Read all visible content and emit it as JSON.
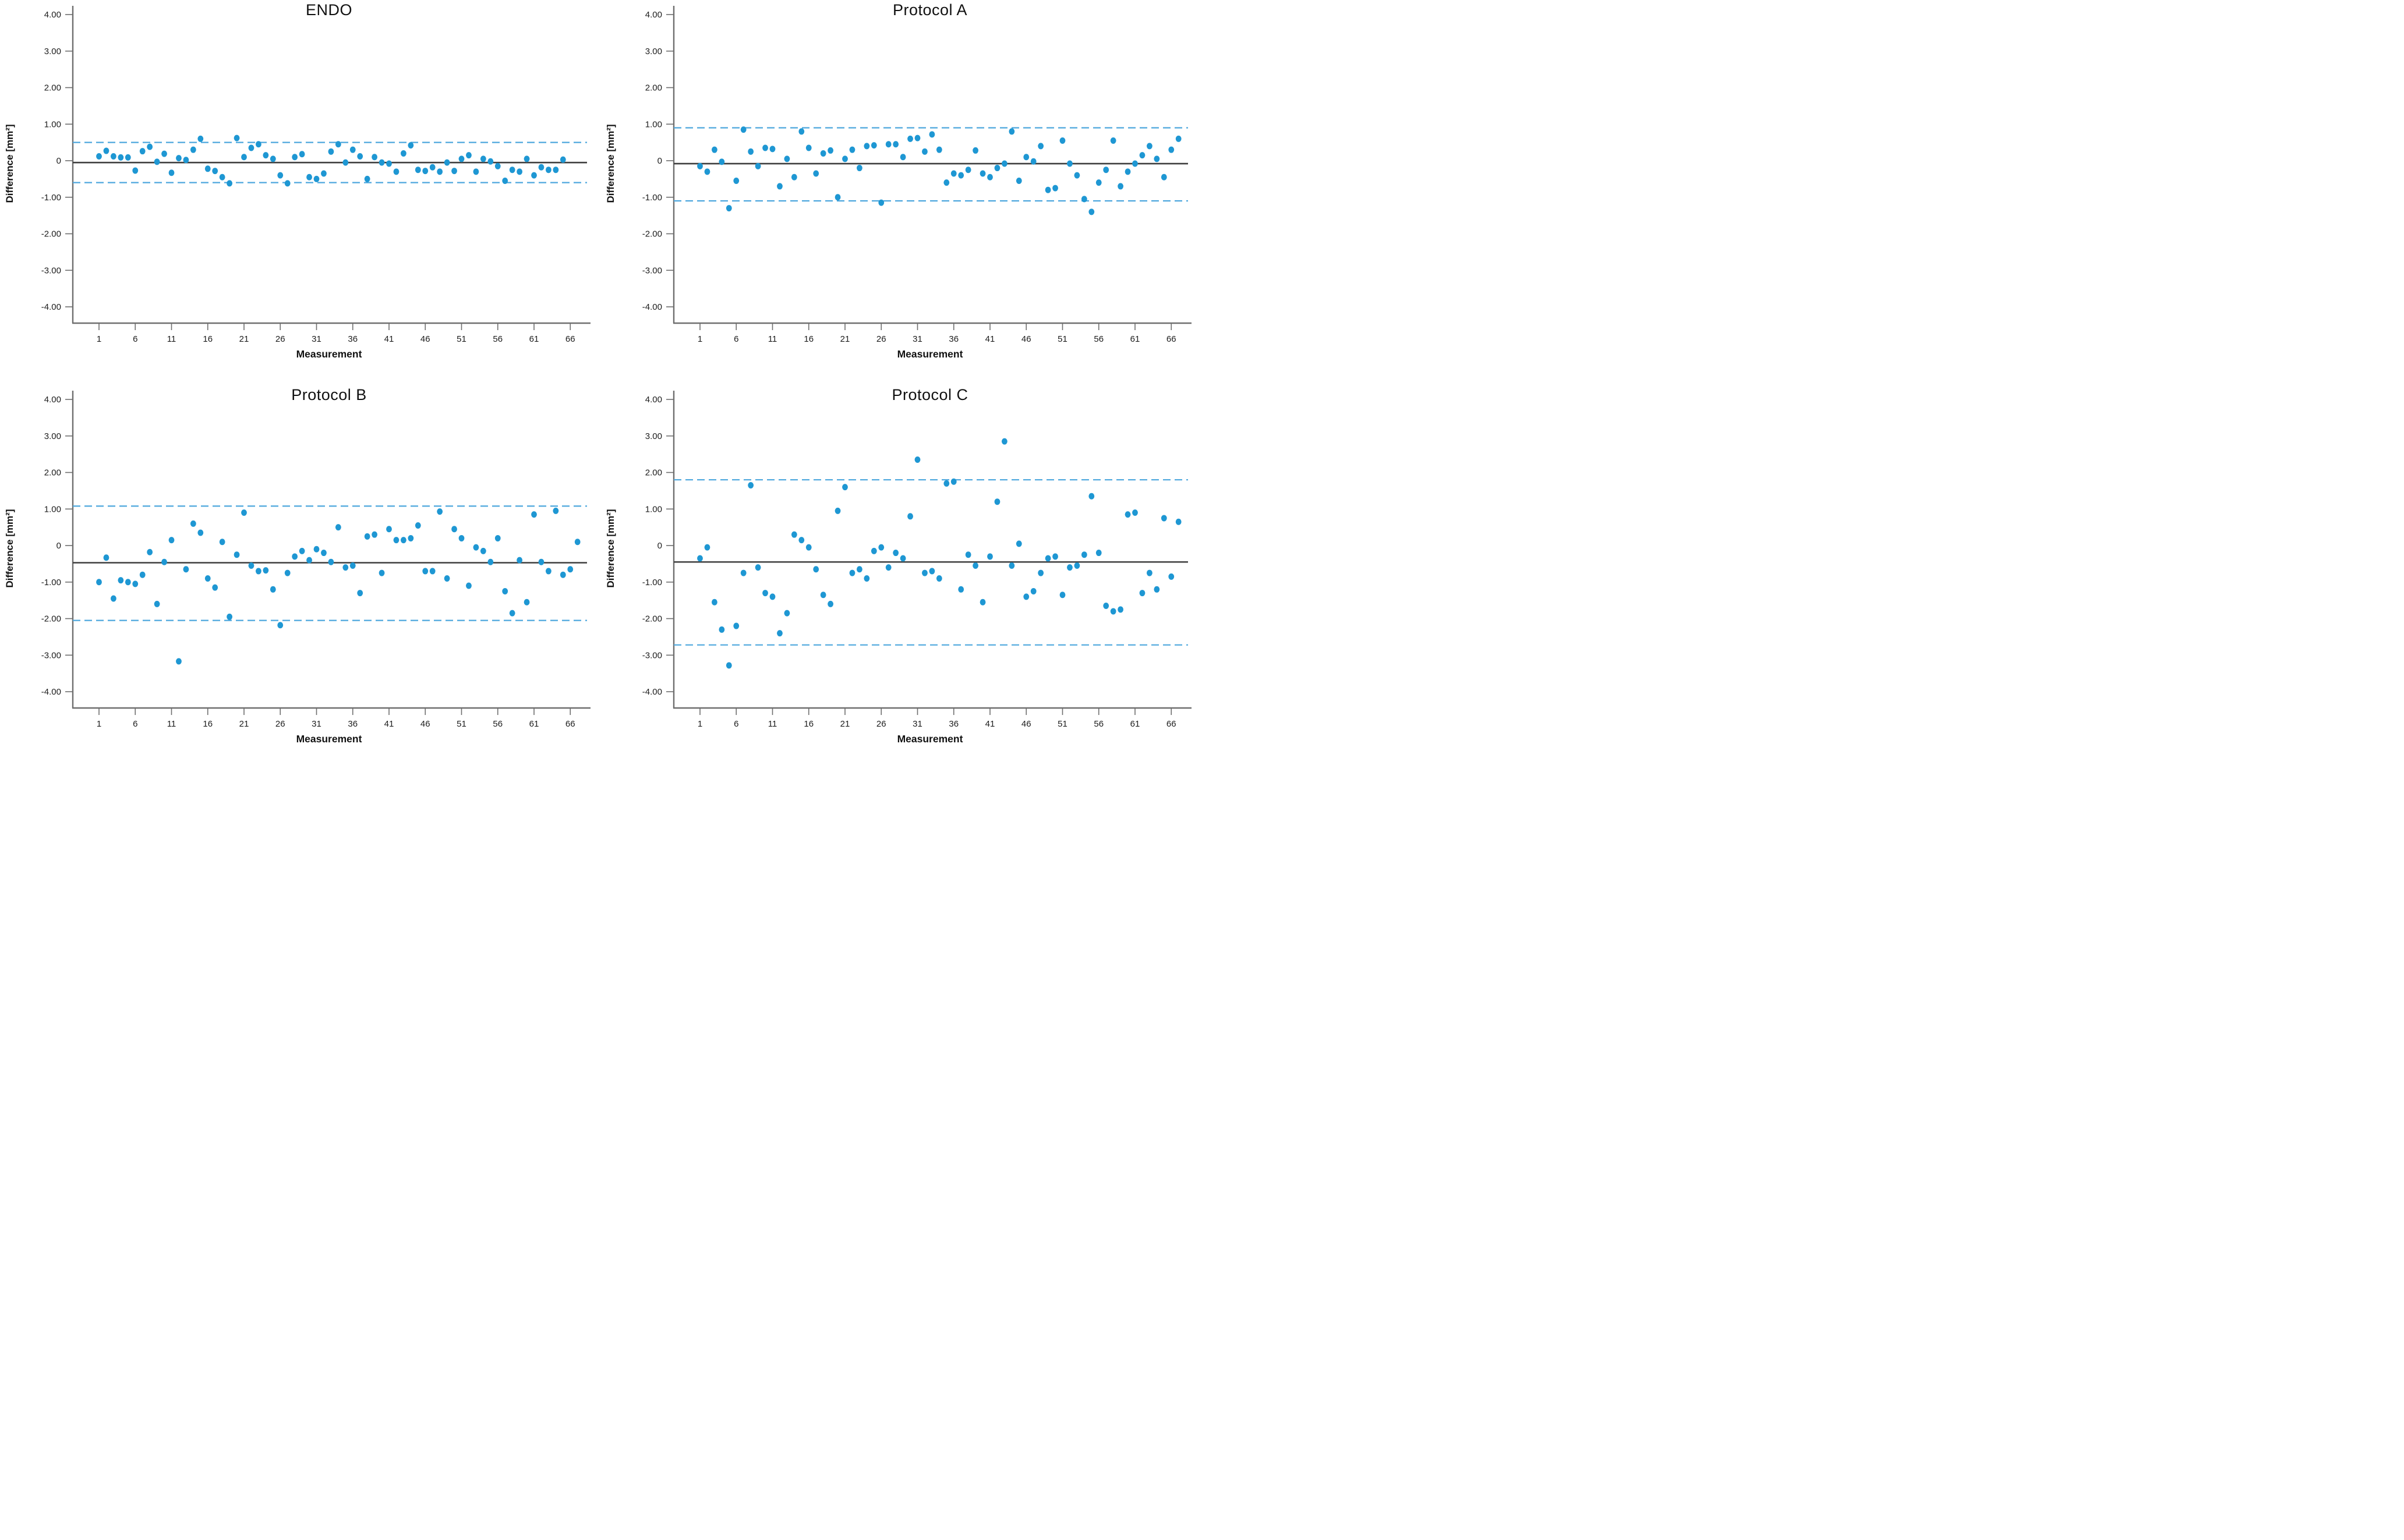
{
  "colors": {
    "dot_fill": "#1e97d3",
    "loa_dashed_line": "#4da7dd",
    "mean_line": "#3f3f3f",
    "axis_line": "#6e6e6e",
    "tick_text": "#1c1c1c"
  },
  "chart_data": [
    {
      "type": "scatter",
      "title": "ENDO",
      "xlabel": "Measurement",
      "ylabel": "Difference [mm²]",
      "x_ticks": [
        1,
        6,
        11,
        16,
        21,
        26,
        31,
        36,
        41,
        46,
        51,
        56,
        61,
        66
      ],
      "y_ticks": [
        "4.00",
        "3.00",
        "2.00",
        "1.00",
        "0",
        "-1.00",
        "-2.00",
        "-3.00",
        "-4.00"
      ],
      "y_tick_values": [
        4,
        3,
        2,
        1,
        0,
        -1,
        -2,
        -3,
        -4
      ],
      "ylim": [
        -4.5,
        4.5
      ],
      "mean": -0.05,
      "loa_upper": 0.5,
      "loa_lower": -0.6,
      "values": [
        0.12,
        0.27,
        0.12,
        0.09,
        0.09,
        -0.27,
        0.26,
        0.38,
        -0.03,
        0.19,
        -0.33,
        0.07,
        0.02,
        0.3,
        0.6,
        -0.22,
        -0.28,
        -0.45,
        -0.62,
        0.62,
        0.1,
        0.35,
        0.45,
        0.15,
        0.05,
        -0.4,
        -0.62,
        0.1,
        0.18,
        -0.45,
        -0.5,
        -0.35,
        0.25,
        0.45,
        -0.05,
        0.3,
        0.12,
        -0.5,
        0.1,
        -0.05,
        -0.08,
        -0.3,
        0.2,
        0.42,
        -0.25,
        -0.28,
        -0.18,
        -0.3,
        -0.05,
        -0.28,
        0.05,
        0.15,
        -0.3,
        0.05,
        -0.02,
        -0.15,
        -0.55,
        -0.25,
        -0.3,
        0.05,
        -0.4,
        -0.18,
        -0.25,
        -0.25,
        0.03
      ]
    },
    {
      "type": "scatter",
      "title": "Protocol A",
      "xlabel": "Measurement",
      "ylabel": "Difference [mm²]",
      "x_ticks": [
        1,
        6,
        11,
        16,
        21,
        26,
        31,
        36,
        41,
        46,
        51,
        56,
        61,
        66
      ],
      "y_ticks": [
        "4.00",
        "3.00",
        "2.00",
        "1.00",
        "0",
        "-1.00",
        "-2.00",
        "-3.00",
        "-4.00"
      ],
      "y_tick_values": [
        4,
        3,
        2,
        1,
        0,
        -1,
        -2,
        -3,
        -4
      ],
      "ylim": [
        -4.5,
        4.5
      ],
      "mean": -0.08,
      "loa_upper": 0.9,
      "loa_lower": -1.1,
      "values": [
        -0.15,
        -0.3,
        0.3,
        -0.03,
        -1.3,
        -0.55,
        0.85,
        0.25,
        -0.15,
        0.35,
        0.32,
        -0.7,
        0.05,
        -0.45,
        0.8,
        0.35,
        -0.35,
        0.2,
        0.28,
        -1.0,
        0.05,
        0.3,
        -0.2,
        0.4,
        0.42,
        -1.15,
        0.45,
        0.45,
        0.1,
        0.6,
        0.62,
        0.25,
        0.72,
        0.3,
        -0.6,
        -0.35,
        -0.4,
        -0.25,
        0.28,
        -0.35,
        -0.45,
        -0.2,
        -0.08,
        0.8,
        -0.55,
        0.1,
        -0.02,
        0.4,
        -0.8,
        -0.75,
        0.55,
        -0.08,
        -0.4,
        -1.05,
        -1.4,
        -0.6,
        -0.25,
        0.55,
        -0.7,
        -0.3,
        -0.08,
        0.15,
        0.4,
        0.05,
        -0.45,
        0.3,
        0.6
      ]
    },
    {
      "type": "scatter",
      "title": "Protocol B",
      "xlabel": "Measurement",
      "ylabel": "Difference [mm²]",
      "x_ticks": [
        1,
        6,
        11,
        16,
        21,
        26,
        31,
        36,
        41,
        46,
        51,
        56,
        61,
        66
      ],
      "y_ticks": [
        "4.00",
        "3.00",
        "2.00",
        "1.00",
        "0",
        "-1.00",
        "-2.00",
        "-3.00",
        "-4.00"
      ],
      "y_tick_values": [
        4,
        3,
        2,
        1,
        0,
        -1,
        -2,
        -3,
        -4
      ],
      "ylim": [
        -4.5,
        4.5
      ],
      "mean": -0.47,
      "loa_upper": 1.08,
      "loa_lower": -2.05,
      "values": [
        -1.0,
        -0.33,
        -1.45,
        -0.95,
        -1.0,
        -1.05,
        -0.8,
        -0.18,
        -1.6,
        -0.45,
        0.15,
        -3.17,
        -0.65,
        0.6,
        0.35,
        -0.9,
        -1.15,
        0.1,
        -1.95,
        -0.25,
        0.9,
        -0.55,
        -0.7,
        -0.68,
        -1.2,
        -2.18,
        -0.75,
        -0.3,
        -0.15,
        -0.4,
        -0.1,
        -0.2,
        -0.45,
        0.5,
        -0.6,
        -0.55,
        -1.3,
        0.25,
        0.3,
        -0.75,
        0.45,
        0.15,
        0.15,
        0.2,
        0.55,
        -0.7,
        -0.7,
        0.93,
        -0.9,
        0.45,
        0.2,
        -1.1,
        -0.05,
        -0.15,
        -0.45,
        0.2,
        -1.25,
        -1.85,
        -0.4,
        -1.55,
        0.85,
        -0.45,
        -0.7,
        0.95,
        -0.8,
        -0.65,
        0.1
      ]
    },
    {
      "type": "scatter",
      "title": "Protocol C",
      "xlabel": "Measurement",
      "ylabel": "Difference [mm²]",
      "x_ticks": [
        1,
        6,
        11,
        16,
        21,
        26,
        31,
        36,
        41,
        46,
        51,
        56,
        61,
        66
      ],
      "y_ticks": [
        "4.00",
        "3.00",
        "2.00",
        "1.00",
        "0",
        "-1.00",
        "-2.00",
        "-3.00",
        "-4.00"
      ],
      "y_tick_values": [
        4,
        3,
        2,
        1,
        0,
        -1,
        -2,
        -3,
        -4
      ],
      "ylim": [
        -4.5,
        4.5
      ],
      "mean": -0.45,
      "loa_upper": 1.8,
      "loa_lower": -2.72,
      "values": [
        -0.35,
        -0.05,
        -1.55,
        -2.3,
        -3.28,
        -2.2,
        -0.75,
        1.65,
        -0.6,
        -1.3,
        -1.4,
        -2.4,
        -1.85,
        0.3,
        0.15,
        -0.05,
        -0.65,
        -1.35,
        -1.6,
        0.95,
        1.6,
        -0.75,
        -0.65,
        -0.9,
        -0.15,
        -0.05,
        -0.6,
        -0.2,
        -0.35,
        0.8,
        2.35,
        -0.75,
        -0.7,
        -0.9,
        1.7,
        1.75,
        -1.2,
        -0.25,
        -0.55,
        -1.55,
        -0.3,
        1.2,
        2.85,
        -0.55,
        0.05,
        -1.4,
        -1.25,
        -0.75,
        -0.35,
        -0.3,
        -1.35,
        -0.6,
        -0.55,
        -0.25,
        1.35,
        -0.2,
        -1.65,
        -1.8,
        -1.75,
        0.85,
        0.9,
        -1.3,
        -0.75,
        -1.2,
        0.75,
        -0.85,
        0.65
      ]
    }
  ]
}
